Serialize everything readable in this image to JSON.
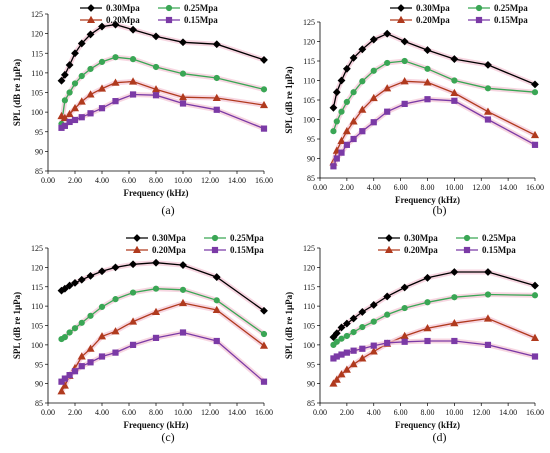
{
  "chart_data": [
    {
      "type": "line",
      "panel_label": "(a)",
      "xlabel": "Frequency  (kHz)",
      "ylabel": "SPL (dB re 1μPa)",
      "xlim": [
        0,
        16
      ],
      "ylim": [
        85,
        125
      ],
      "xticks": [
        "0.00",
        "2.00",
        "4.00",
        "6.00",
        "8.00",
        "10.00",
        "12.00",
        "14.00",
        "16.00"
      ],
      "yticks": [
        "85",
        "90",
        "95",
        "100",
        "105",
        "110",
        "115",
        "120",
        "125"
      ],
      "legend": "top",
      "series": [
        {
          "name": "0.30Mpa",
          "color": "#000000",
          "marker": "diamond",
          "x": [
            1.0,
            1.25,
            1.6,
            2.0,
            2.5,
            3.15,
            4.0,
            5.0,
            6.3,
            8.0,
            10.0,
            12.5,
            16.0
          ],
          "y": [
            108,
            109.5,
            112,
            115,
            117.5,
            119.8,
            121.8,
            122.3,
            121,
            119.3,
            117.8,
            117.3,
            113.3
          ]
        },
        {
          "name": "0.25Mpa",
          "color": "#3aa655",
          "marker": "circle",
          "x": [
            1.0,
            1.25,
            1.6,
            2.0,
            2.5,
            3.15,
            4.0,
            5.0,
            6.3,
            8.0,
            10.0,
            12.5,
            16.0
          ],
          "y": [
            97,
            103,
            105,
            107.3,
            109.2,
            111,
            112.8,
            114,
            113.5,
            111.5,
            109.8,
            108.7,
            105.8
          ]
        },
        {
          "name": "0.20Mpa",
          "color": "#b03a1e",
          "marker": "triangle",
          "x": [
            1.0,
            1.25,
            1.6,
            2.0,
            2.5,
            3.15,
            4.0,
            5.0,
            6.3,
            8.0,
            10.0,
            12.5,
            16.0
          ],
          "y": [
            99,
            98.5,
            99.5,
            101,
            102.7,
            104.5,
            106,
            107.5,
            107.8,
            105.8,
            103.8,
            103.6,
            101.8
          ]
        },
        {
          "name": "0.15Mpa",
          "color": "#7b3aa6",
          "marker": "square",
          "x": [
            1.0,
            1.25,
            1.6,
            2.0,
            2.5,
            3.15,
            4.0,
            5.0,
            6.3,
            8.0,
            10.0,
            12.5,
            16.0
          ],
          "y": [
            96,
            96.5,
            97.5,
            98,
            98.7,
            99.7,
            101,
            102.8,
            104.5,
            104.3,
            102.2,
            100.6,
            95.8
          ]
        }
      ]
    },
    {
      "type": "line",
      "panel_label": "(b)",
      "xlabel": "Frequency  (kHz)",
      "ylabel": "SPL (dB re 1μPa)",
      "xlim": [
        0,
        16
      ],
      "ylim": [
        85,
        125
      ],
      "xticks": [
        "0.00",
        "2.00",
        "4.00",
        "6.00",
        "8.00",
        "10.00",
        "12.00",
        "14.00",
        "16.00"
      ],
      "yticks": [
        "85",
        "90",
        "95",
        "100",
        "105",
        "110",
        "115",
        "120",
        "125"
      ],
      "legend": "top",
      "series": [
        {
          "name": "0.30Mpa",
          "color": "#000000",
          "marker": "diamond",
          "x": [
            1.0,
            1.25,
            1.6,
            2.0,
            2.5,
            3.15,
            4.0,
            5.0,
            6.3,
            8.0,
            10.0,
            12.5,
            16.0
          ],
          "y": [
            103,
            107,
            110,
            113,
            115.8,
            118,
            120.5,
            122,
            120,
            117.8,
            115.5,
            114,
            109
          ]
        },
        {
          "name": "0.25Mpa",
          "color": "#3aa655",
          "marker": "circle",
          "x": [
            1.0,
            1.25,
            1.6,
            2.0,
            2.5,
            3.15,
            4.0,
            5.0,
            6.3,
            8.0,
            10.0,
            12.5,
            16.0
          ],
          "y": [
            97,
            99.5,
            102,
            104.5,
            107,
            109.8,
            112.5,
            114.5,
            115,
            113,
            110,
            108,
            107
          ]
        },
        {
          "name": "0.20Mpa",
          "color": "#b03a1e",
          "marker": "triangle",
          "x": [
            1.0,
            1.25,
            1.6,
            2.0,
            2.5,
            3.15,
            4.0,
            5.0,
            6.3,
            8.0,
            10.0,
            12.5,
            16.0
          ],
          "y": [
            89,
            92,
            94.5,
            97,
            99.5,
            102.5,
            105.5,
            108,
            109.8,
            109.5,
            106.8,
            102,
            96
          ]
        },
        {
          "name": "0.15Mpa",
          "color": "#7b3aa6",
          "marker": "square",
          "x": [
            1.0,
            1.25,
            1.6,
            2.0,
            2.5,
            3.15,
            4.0,
            5.0,
            6.3,
            8.0,
            10.0,
            12.5,
            16.0
          ],
          "y": [
            88,
            90,
            91.5,
            93.5,
            95,
            97,
            99.3,
            102,
            104,
            105.2,
            104.8,
            100,
            93.5
          ]
        }
      ]
    },
    {
      "type": "line",
      "panel_label": "(c)",
      "xlabel": "Frequency  (kHz)",
      "ylabel": "SPL (dB re 1μPa)",
      "xlim": [
        0,
        16
      ],
      "ylim": [
        85,
        125
      ],
      "xticks": [
        "0.00",
        "2.00",
        "4.00",
        "6.00",
        "8.00",
        "10.00",
        "12.00",
        "14.00",
        "16.00"
      ],
      "yticks": [
        "85",
        "90",
        "95",
        "100",
        "105",
        "110",
        "115",
        "120",
        "125"
      ],
      "legend": "top",
      "series": [
        {
          "name": "0.30Mpa",
          "color": "#000000",
          "marker": "diamond",
          "x": [
            1.0,
            1.25,
            1.6,
            2.0,
            2.5,
            3.15,
            4.0,
            5.0,
            6.3,
            8.0,
            10.0,
            12.5,
            16.0
          ],
          "y": [
            114,
            114.5,
            115.3,
            116,
            116.8,
            117.8,
            119,
            120,
            120.8,
            121.2,
            120.6,
            117.5,
            108.8
          ]
        },
        {
          "name": "0.25Mpa",
          "color": "#3aa655",
          "marker": "circle",
          "x": [
            1.0,
            1.25,
            1.6,
            2.0,
            2.5,
            3.15,
            4.0,
            5.0,
            6.3,
            8.0,
            10.0,
            12.5,
            16.0
          ],
          "y": [
            101.5,
            102,
            103.2,
            104.3,
            105.7,
            107.5,
            109.8,
            111.8,
            113.5,
            114.5,
            114.2,
            111.5,
            102.8
          ]
        },
        {
          "name": "0.20Mpa",
          "color": "#b03a1e",
          "marker": "triangle",
          "x": [
            1.0,
            1.25,
            1.6,
            2.0,
            2.5,
            3.15,
            4.0,
            5.0,
            6.3,
            8.0,
            10.0,
            12.5,
            16.0
          ],
          "y": [
            88,
            89.5,
            92,
            94,
            97,
            99,
            102.2,
            103.5,
            106,
            108.5,
            110.8,
            109,
            99.8
          ]
        },
        {
          "name": "0.15Mpa",
          "color": "#7b3aa6",
          "marker": "square",
          "x": [
            1.0,
            1.25,
            1.6,
            2.0,
            2.5,
            3.15,
            4.0,
            5.0,
            6.3,
            8.0,
            10.0,
            12.5,
            16.0
          ],
          "y": [
            90.5,
            91.3,
            92.2,
            93.2,
            94.5,
            95.5,
            97,
            98,
            100,
            101.8,
            103.2,
            101,
            90.5
          ]
        }
      ]
    },
    {
      "type": "line",
      "panel_label": "(d)",
      "xlabel": "Frequency  (kHz)",
      "ylabel": "SPL (dB re 1μPa)",
      "xlim": [
        0,
        16
      ],
      "ylim": [
        85,
        125
      ],
      "xticks": [
        "0.00",
        "2.00",
        "4.00",
        "6.00",
        "8.00",
        "10.00",
        "12.00",
        "14.00",
        "16.00"
      ],
      "yticks": [
        "85",
        "90",
        "95",
        "100",
        "105",
        "110",
        "115",
        "120",
        "125"
      ],
      "legend": "top",
      "series": [
        {
          "name": "0.30Mpa",
          "color": "#000000",
          "marker": "diamond",
          "x": [
            1.0,
            1.25,
            1.6,
            2.0,
            2.5,
            3.15,
            4.0,
            5.0,
            6.3,
            8.0,
            10.0,
            12.5,
            16.0
          ],
          "y": [
            102,
            103,
            104.5,
            105.5,
            106.8,
            108.5,
            110.3,
            112.5,
            114.8,
            117.3,
            118.8,
            118.8,
            115.3
          ]
        },
        {
          "name": "0.25Mpa",
          "color": "#3aa655",
          "marker": "circle",
          "x": [
            1.0,
            1.25,
            1.6,
            2.0,
            2.5,
            3.15,
            4.0,
            5.0,
            6.3,
            8.0,
            10.0,
            12.5,
            16.0
          ],
          "y": [
            100,
            100.8,
            101.6,
            102.3,
            103.3,
            104.6,
            106,
            107.8,
            109.5,
            111,
            112.3,
            113,
            112.8
          ]
        },
        {
          "name": "0.20Mpa",
          "color": "#b03a1e",
          "marker": "triangle",
          "x": [
            1.0,
            1.25,
            1.6,
            2.0,
            2.5,
            3.15,
            4.0,
            5.0,
            6.3,
            8.0,
            10.0,
            12.5,
            16.0
          ],
          "y": [
            90,
            91,
            92.4,
            93.6,
            95,
            96.5,
            98.3,
            100.3,
            102.3,
            104.3,
            105.6,
            106.8,
            101.8
          ]
        },
        {
          "name": "0.15Mpa",
          "color": "#7b3aa6",
          "marker": "square",
          "x": [
            1.0,
            1.25,
            1.6,
            2.0,
            2.5,
            3.15,
            4.0,
            5.0,
            6.3,
            8.0,
            10.0,
            12.5,
            16.0
          ],
          "y": [
            96.5,
            97,
            97.5,
            98,
            98.5,
            99,
            99.8,
            100.5,
            100.8,
            101,
            101,
            100,
            97
          ]
        }
      ]
    }
  ]
}
